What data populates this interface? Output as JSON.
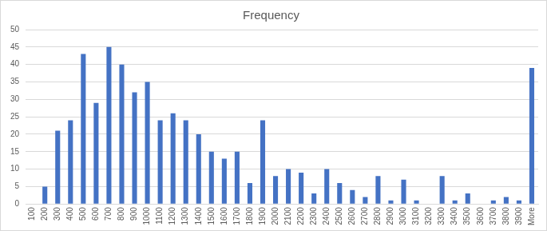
{
  "chart_data": {
    "type": "bar",
    "title": "Frequency",
    "categories": [
      "100",
      "200",
      "300",
      "400",
      "500",
      "600",
      "700",
      "800",
      "900",
      "1000",
      "1100",
      "1200",
      "1300",
      "1400",
      "1500",
      "1600",
      "1700",
      "1800",
      "1900",
      "2000",
      "2100",
      "2200",
      "2300",
      "2400",
      "2500",
      "2600",
      "2700",
      "2800",
      "2900",
      "3000",
      "3100",
      "3200",
      "3300",
      "3400",
      "3500",
      "3600",
      "3700",
      "3800",
      "3900",
      "More"
    ],
    "values": [
      0,
      5,
      21,
      24,
      43,
      29,
      45,
      40,
      32,
      35,
      24,
      26,
      24,
      20,
      15,
      13,
      15,
      6,
      24,
      8,
      10,
      9,
      3,
      10,
      6,
      4,
      2,
      8,
      1,
      7,
      1,
      0,
      8,
      1,
      3,
      0,
      1,
      2,
      1,
      39
    ],
    "color": "#4472c4",
    "ylim": [
      0,
      50
    ],
    "yticks": [
      0,
      5,
      10,
      15,
      20,
      25,
      30,
      35,
      40,
      45,
      50
    ],
    "grid": true
  }
}
